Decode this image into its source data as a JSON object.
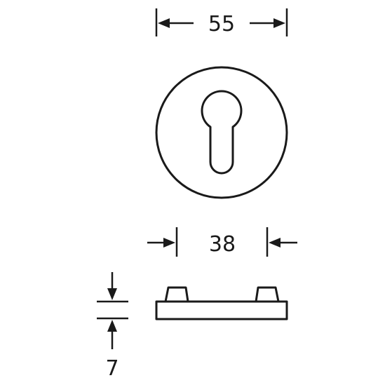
{
  "dimensions": {
    "overall_diameter": "55",
    "cylinder_spacing": "38",
    "thickness": "7"
  }
}
